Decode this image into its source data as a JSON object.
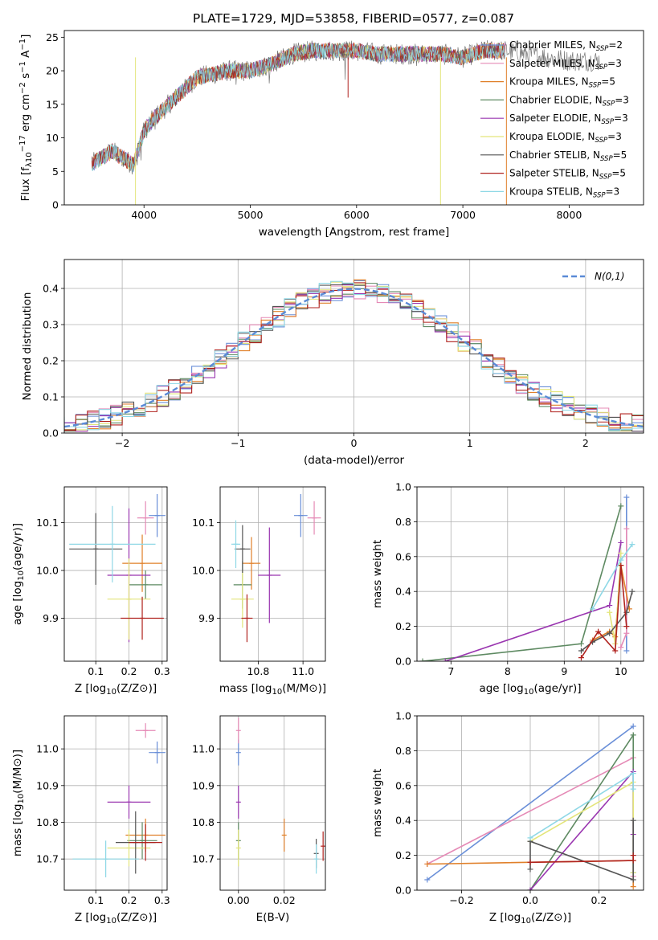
{
  "title": "PLATE=1729, MJD=53858, FIBERID=0577, z=0.087",
  "colors": {
    "Chabrier MILES": "#6a8fd8",
    "Salpeter MILES": "#e58ab6",
    "Kroupa MILES": "#e0802a",
    "Chabrier ELODIE": "#5e8a62",
    "Salpeter ELODIE": "#9a36b0",
    "Kroupa ELODIE": "#e3e57a",
    "Chabrier STELIB": "#555555",
    "Salpeter STELIB": "#b0221e",
    "Kroupa STELIB": "#8fd8e6",
    "normal": "#5a8ad6"
  },
  "chart_data": [
    {
      "id": "spectrum",
      "type": "line",
      "xlabel": "wavelength [Angstrom, rest frame]",
      "ylabel": "Flux [f_λ10^-17 erg cm^-2 s^-1 A^-1]",
      "xlim": [
        3250,
        8700
      ],
      "ylim": [
        0,
        26
      ],
      "xticks": [
        4000,
        5000,
        6000,
        7000,
        8000
      ],
      "yticks": [
        0,
        5,
        10,
        15,
        20,
        25
      ],
      "grid": false,
      "legend_position": "top-right",
      "legend": [
        {
          "model": "Chabrier MILES",
          "nssp": "2"
        },
        {
          "model": "Salpeter MILES",
          "nssp": "3"
        },
        {
          "model": "Kroupa MILES",
          "nssp": "5"
        },
        {
          "model": "Chabrier ELODIE",
          "nssp": "3"
        },
        {
          "model": "Salpeter ELODIE",
          "nssp": "3"
        },
        {
          "model": "Kroupa ELODIE",
          "nssp": "3"
        },
        {
          "model": "Chabrier STELIB",
          "nssp": "5"
        },
        {
          "model": "Salpeter STELIB",
          "nssp": "5"
        },
        {
          "model": "Kroupa STELIB",
          "nssp": "3"
        }
      ],
      "approx_continuum": {
        "x": [
          3500,
          3700,
          3850,
          3900,
          4000,
          4100,
          4300,
          4500,
          4800,
          5000,
          5200,
          5400,
          5600,
          5800,
          6000,
          6200,
          6400,
          6600,
          6800,
          7000,
          7200,
          7400,
          7600,
          7800,
          8000,
          8300
        ],
        "y": [
          6,
          8,
          6.5,
          6,
          11,
          13,
          16,
          19,
          20,
          20,
          21,
          22.5,
          23,
          23,
          23,
          22.5,
          22.5,
          22.5,
          22.5,
          22,
          23,
          23,
          22.5,
          22,
          21.5,
          21.5
        ]
      }
    },
    {
      "id": "residual_hist",
      "type": "histogram",
      "xlabel": "(data-model)/error",
      "ylabel": "Normed distribution",
      "xlim": [
        -2.5,
        2.5
      ],
      "ylim": [
        0,
        0.48
      ],
      "xticks": [
        -2,
        -1,
        0,
        1,
        2
      ],
      "yticks": [
        0.0,
        0.1,
        0.2,
        0.3,
        0.4
      ],
      "grid": true,
      "legend_position": "top-right",
      "legend_label": "N(0,1)",
      "bin_width": 0.1
    },
    {
      "id": "age_vs_Z",
      "type": "scatter",
      "xlabel": "Z [log10(Z/Z⊙)]",
      "ylabel": "age  [log10(age/yr)]",
      "xlim": [
        0.005,
        0.315
      ],
      "ylim": [
        9.81,
        10.175
      ],
      "xticks": [
        0.1,
        0.2,
        0.3
      ],
      "yticks": [
        9.9,
        10.0,
        10.1
      ],
      "grid": true,
      "points": [
        {
          "model": "Chabrier MILES",
          "x": 0.285,
          "y": 10.115,
          "xerr": 0.025,
          "yerr": 0.045
        },
        {
          "model": "Salpeter MILES",
          "x": 0.25,
          "y": 10.11,
          "xerr": 0.025,
          "yerr": 0.035
        },
        {
          "model": "Kroupa MILES",
          "x": 0.24,
          "y": 10.015,
          "xerr": 0.06,
          "yerr": 0.06
        },
        {
          "model": "Chabrier ELODIE",
          "x": 0.25,
          "y": 9.97,
          "xerr": 0.05,
          "yerr": 0.03
        },
        {
          "model": "Salpeter ELODIE",
          "x": 0.2,
          "y": 9.99,
          "xerr": 0.065,
          "yerr": 0.14
        },
        {
          "model": "Kroupa ELODIE",
          "x": 0.2,
          "y": 9.94,
          "xerr": 0.065,
          "yerr": 0.085
        },
        {
          "model": "Chabrier STELIB",
          "x": 0.1,
          "y": 10.045,
          "xerr": 0.08,
          "yerr": 0.075
        },
        {
          "model": "Salpeter STELIB",
          "x": 0.24,
          "y": 9.9,
          "xerr": 0.065,
          "yerr": 0.045
        },
        {
          "model": "Kroupa STELIB",
          "x": 0.15,
          "y": 10.055,
          "xerr": 0.13,
          "yerr": 0.08
        }
      ]
    },
    {
      "id": "age_vs_mass",
      "type": "scatter",
      "xlabel": "mass [log10(M/M⊙)]",
      "ylabel": "",
      "xlim": [
        10.63,
        11.1
      ],
      "ylim": [
        9.81,
        10.175
      ],
      "xticks": [
        10.8,
        11.0
      ],
      "yticks": [
        9.9,
        10.0,
        10.1
      ],
      "grid": true,
      "points": [
        {
          "model": "Chabrier MILES",
          "x": 10.99,
          "y": 10.115,
          "xerr": 0.03,
          "yerr": 0.045
        },
        {
          "model": "Salpeter MILES",
          "x": 11.05,
          "y": 10.11,
          "xerr": 0.03,
          "yerr": 0.035
        },
        {
          "model": "Kroupa MILES",
          "x": 10.77,
          "y": 10.015,
          "xerr": 0.04,
          "yerr": 0.055
        },
        {
          "model": "Chabrier ELODIE",
          "x": 10.73,
          "y": 9.97,
          "xerr": 0.04,
          "yerr": 0.05
        },
        {
          "model": "Salpeter ELODIE",
          "x": 10.85,
          "y": 9.99,
          "xerr": 0.05,
          "yerr": 0.1
        },
        {
          "model": "Kroupa ELODIE",
          "x": 10.73,
          "y": 9.94,
          "xerr": 0.05,
          "yerr": 0.06
        },
        {
          "model": "Chabrier STELIB",
          "x": 10.73,
          "y": 10.045,
          "xerr": 0.035,
          "yerr": 0.05
        },
        {
          "model": "Salpeter STELIB",
          "x": 10.75,
          "y": 9.9,
          "xerr": 0.025,
          "yerr": 0.05
        },
        {
          "model": "Kroupa STELIB",
          "x": 10.7,
          "y": 10.055,
          "xerr": 0.02,
          "yerr": 0.05
        }
      ]
    },
    {
      "id": "weight_vs_age",
      "type": "line",
      "xlabel": "age  [log10(age/yr)]",
      "ylabel": "mass weight",
      "xlim": [
        6.4,
        10.4
      ],
      "ylim": [
        0,
        1.0
      ],
      "xticks": [
        7,
        8,
        9,
        10
      ],
      "yticks": [
        0.0,
        0.2,
        0.4,
        0.6,
        0.8,
        1.0
      ],
      "grid": true,
      "series": [
        {
          "model": "Chabrier MILES",
          "x": [
            10.1,
            10.1
          ],
          "y": [
            0.06,
            0.94
          ]
        },
        {
          "model": "Salpeter MILES",
          "x": [
            10.0,
            10.1,
            10.1
          ],
          "y": [
            0.08,
            0.16,
            0.76
          ]
        },
        {
          "model": "Kroupa MILES",
          "x": [
            9.5,
            9.8,
            9.9,
            10.0,
            10.15
          ],
          "y": [
            0.12,
            0.17,
            0.14,
            0.55,
            0.3
          ]
        },
        {
          "model": "Chabrier ELODIE",
          "x": [
            6.5,
            9.3,
            10.0
          ],
          "y": [
            0.0,
            0.1,
            0.89
          ]
        },
        {
          "model": "Salpeter ELODIE",
          "x": [
            6.9,
            9.8,
            10.0
          ],
          "y": [
            0.0,
            0.32,
            0.68
          ]
        },
        {
          "model": "Kroupa ELODIE",
          "x": [
            9.8,
            9.9,
            10.0
          ],
          "y": [
            0.28,
            0.1,
            0.62
          ]
        },
        {
          "model": "Chabrier STELIB",
          "x": [
            9.3,
            9.5,
            9.8,
            10.1,
            10.2
          ],
          "y": [
            0.06,
            0.11,
            0.16,
            0.28,
            0.4
          ]
        },
        {
          "model": "Salpeter STELIB",
          "x": [
            9.3,
            9.6,
            9.9,
            10.0,
            10.1
          ],
          "y": [
            0.02,
            0.17,
            0.06,
            0.55,
            0.2
          ]
        },
        {
          "model": "Kroupa STELIB",
          "x": [
            9.5,
            10.0,
            10.2
          ],
          "y": [
            0.3,
            0.58,
            0.67
          ]
        }
      ]
    },
    {
      "id": "mass_vs_Z",
      "type": "scatter",
      "xlabel": "Z [log10(Z/Z⊙)]",
      "ylabel": "mass [log10(M/M⊙)]",
      "xlim": [
        0.005,
        0.315
      ],
      "ylim": [
        10.615,
        11.09
      ],
      "xticks": [
        0.1,
        0.2,
        0.3
      ],
      "yticks": [
        10.7,
        10.8,
        10.9,
        11.0
      ],
      "grid": true,
      "points": [
        {
          "model": "Chabrier MILES",
          "x": 0.285,
          "y": 10.99,
          "xerr": 0.025,
          "yerr": 0.03
        },
        {
          "model": "Salpeter MILES",
          "x": 0.25,
          "y": 11.05,
          "xerr": 0.03,
          "yerr": 0.02
        },
        {
          "model": "Kroupa MILES",
          "x": 0.25,
          "y": 10.765,
          "xerr": 0.06,
          "yerr": 0.045
        },
        {
          "model": "Chabrier ELODIE",
          "x": 0.24,
          "y": 10.75,
          "xerr": 0.045,
          "yerr": 0.05
        },
        {
          "model": "Salpeter ELODIE",
          "x": 0.2,
          "y": 10.855,
          "xerr": 0.065,
          "yerr": 0.045
        },
        {
          "model": "Kroupa ELODIE",
          "x": 0.2,
          "y": 10.73,
          "xerr": 0.065,
          "yerr": 0.05
        },
        {
          "model": "Chabrier STELIB",
          "x": 0.22,
          "y": 10.745,
          "xerr": 0.06,
          "yerr": 0.085
        },
        {
          "model": "Salpeter STELIB",
          "x": 0.25,
          "y": 10.745,
          "xerr": 0.05,
          "yerr": 0.05
        },
        {
          "model": "Kroupa STELIB",
          "x": 0.13,
          "y": 10.7,
          "xerr": 0.1,
          "yerr": 0.05
        }
      ]
    },
    {
      "id": "mass_vs_EBV",
      "type": "scatter",
      "xlabel": "E(B-V)",
      "ylabel": "",
      "xlim": [
        -0.008,
        0.038
      ],
      "ylim": [
        10.615,
        11.09
      ],
      "xticks": [
        0.0,
        0.02
      ],
      "yticks": [
        10.7,
        10.8,
        10.9,
        11.0
      ],
      "grid": true,
      "points": [
        {
          "model": "Chabrier MILES",
          "x": 0.0,
          "y": 10.99,
          "xerr": 0.0,
          "yerr": 0.035
        },
        {
          "model": "Salpeter MILES",
          "x": 0.0,
          "y": 11.05,
          "xerr": 0.0,
          "yerr": 0.035
        },
        {
          "model": "Kroupa MILES",
          "x": 0.02,
          "y": 10.765,
          "xerr": 0.0,
          "yerr": 0.045
        },
        {
          "model": "Chabrier ELODIE",
          "x": 0.0,
          "y": 10.75,
          "xerr": 0.0,
          "yerr": 0.05
        },
        {
          "model": "Salpeter ELODIE",
          "x": 0.0,
          "y": 10.855,
          "xerr": 0.0,
          "yerr": 0.045
        },
        {
          "model": "Kroupa ELODIE",
          "x": 0.0,
          "y": 10.73,
          "xerr": 0.0,
          "yerr": 0.05
        },
        {
          "model": "Chabrier STELIB",
          "x": 0.034,
          "y": 10.715,
          "xerr": 0.0,
          "yerr": 0.04
        },
        {
          "model": "Salpeter STELIB",
          "x": 0.037,
          "y": 10.735,
          "xerr": 0.0,
          "yerr": 0.04
        },
        {
          "model": "Kroupa STELIB",
          "x": 0.034,
          "y": 10.7,
          "xerr": 0.0,
          "yerr": 0.04
        }
      ]
    },
    {
      "id": "weight_vs_Z",
      "type": "line",
      "xlabel": "Z [log10(Z/Z⊙)]",
      "ylabel": "mass weight",
      "xlim": [
        -0.33,
        0.33
      ],
      "ylim": [
        0,
        1.0
      ],
      "xticks": [
        -0.2,
        0.0,
        0.2
      ],
      "yticks": [
        0.0,
        0.2,
        0.4,
        0.6,
        0.8,
        1.0
      ],
      "grid": true,
      "series": [
        {
          "model": "Chabrier MILES",
          "x": [
            -0.3,
            0.3
          ],
          "y": [
            0.06,
            0.94
          ]
        },
        {
          "model": "Salpeter MILES",
          "x": [
            -0.3,
            0.3,
            0.3
          ],
          "y": [
            0.15,
            0.76,
            0.08
          ]
        },
        {
          "model": "Kroupa MILES",
          "x": [
            -0.3,
            0.3,
            0.3
          ],
          "y": [
            0.15,
            0.17,
            0.02
          ]
        },
        {
          "model": "Chabrier ELODIE",
          "x": [
            0.0,
            0.3,
            0.3
          ],
          "y": [
            0.0,
            0.89,
            0.1
          ]
        },
        {
          "model": "Salpeter ELODIE",
          "x": [
            0.0,
            0.3,
            0.3
          ],
          "y": [
            0.0,
            0.68,
            0.32
          ]
        },
        {
          "model": "Kroupa ELODIE",
          "x": [
            0.0,
            0.3,
            0.3
          ],
          "y": [
            0.28,
            0.62,
            0.1
          ]
        },
        {
          "model": "Chabrier STELIB",
          "x": [
            0.0,
            0.0,
            0.3,
            0.3
          ],
          "y": [
            0.12,
            0.28,
            0.06,
            0.4
          ]
        },
        {
          "model": "Salpeter STELIB",
          "x": [
            0.0,
            0.3,
            0.3
          ],
          "y": [
            0.16,
            0.17,
            0.2
          ]
        },
        {
          "model": "Kroupa STELIB",
          "x": [
            0.0,
            0.3,
            0.3
          ],
          "y": [
            0.3,
            0.67,
            0.58
          ]
        }
      ]
    }
  ]
}
